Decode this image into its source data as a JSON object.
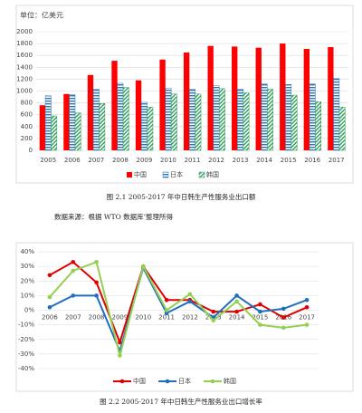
{
  "chart_data": [
    {
      "type": "bar",
      "unit": "单位：亿美元",
      "categories": [
        "2005",
        "2006",
        "2007",
        "2008",
        "2009",
        "2010",
        "2011",
        "2012",
        "2013",
        "2014",
        "2015",
        "2016",
        "2017"
      ],
      "series": [
        {
          "name": "中国",
          "color": "#ff0000",
          "pattern": "solid",
          "values": [
            760,
            950,
            1270,
            1510,
            1180,
            1530,
            1650,
            1760,
            1750,
            1730,
            1800,
            1710,
            1740
          ]
        },
        {
          "name": "日本",
          "color": "#2e75b6",
          "pattern": "horizontal",
          "values": [
            920,
            940,
            1030,
            1130,
            810,
            1050,
            1030,
            1090,
            1030,
            1120,
            1110,
            1120,
            1210
          ]
        },
        {
          "name": "韩国",
          "color": "#2e9e5b",
          "pattern": "diagonal",
          "values": [
            580,
            630,
            790,
            1060,
            730,
            950,
            950,
            1040,
            970,
            1030,
            930,
            820,
            730
          ]
        }
      ],
      "ylim": [
        0,
        2000
      ],
      "yticks": [
        0,
        200,
        400,
        600,
        800,
        1000,
        1200,
        1400,
        1600,
        1800,
        2000
      ],
      "grid": true,
      "caption": "图 2.1  2005-2017 年中日韩生产性服务业出口额",
      "source": "数据来源：根据 WTO 数据库’整理所得"
    },
    {
      "type": "line",
      "categories": [
        "2006",
        "2007",
        "2008",
        "2009",
        "2010",
        "2011",
        "2012",
        "2013",
        "2014",
        "2015",
        "2016",
        "2017"
      ],
      "series": [
        {
          "name": "中国",
          "color": "#e00000",
          "values": [
            24,
            33,
            19,
            -22,
            30,
            7,
            7,
            -1,
            -1,
            4,
            -5,
            2
          ]
        },
        {
          "name": "日本",
          "color": "#1f6fc0",
          "values": [
            2,
            10,
            10,
            -28,
            29,
            -2,
            6,
            -5,
            10,
            -1,
            1,
            7
          ]
        },
        {
          "name": "韩国",
          "color": "#92d050",
          "values": [
            9,
            27,
            33,
            -31,
            30,
            0,
            11,
            -7,
            6,
            -10,
            -12,
            -10
          ]
        }
      ],
      "ylim": [
        -40,
        40
      ],
      "yticks": [
        {
          "value": -40,
          "label": "-40%"
        },
        {
          "value": -30,
          "label": "-30%"
        },
        {
          "value": -20,
          "label": "-20%"
        },
        {
          "value": -10,
          "label": "-10%"
        },
        {
          "value": 0,
          "label": "0%"
        },
        {
          "value": 10,
          "label": "10%"
        },
        {
          "value": 20,
          "label": "20%"
        },
        {
          "value": 30,
          "label": "30%"
        },
        {
          "value": 40,
          "label": "40%"
        }
      ],
      "grid": true,
      "caption": "图 2.2  2005-2017 年中日韩生产性服务业出口增长率"
    }
  ]
}
